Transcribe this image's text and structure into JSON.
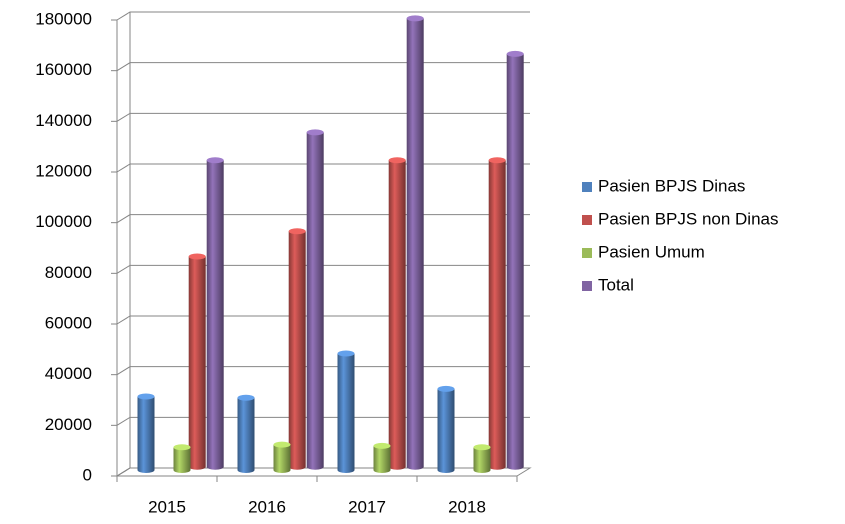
{
  "chart_data": {
    "type": "bar3d",
    "categories": [
      "2015",
      "2016",
      "2017",
      "2018"
    ],
    "series": [
      {
        "name": "Pasien BPJS Dinas",
        "color": "#4f81bd",
        "values": [
          29000,
          28500,
          46000,
          32000
        ]
      },
      {
        "name": "Pasien BPJS non Dinas",
        "color": "#c0504d",
        "values": [
          83000,
          93000,
          121000,
          121000
        ]
      },
      {
        "name": "Pasien Umum",
        "color": "#9bbb59",
        "values": [
          9000,
          10000,
          9500,
          9000
        ]
      },
      {
        "name": "Total",
        "color": "#8064a2",
        "values": [
          121000,
          132000,
          177000,
          163000
        ]
      }
    ],
    "ylim": [
      0,
      180000
    ],
    "yticks": [
      0,
      20000,
      40000,
      60000,
      80000,
      100000,
      120000,
      140000,
      160000,
      180000
    ],
    "grid": true,
    "legend": "right"
  }
}
